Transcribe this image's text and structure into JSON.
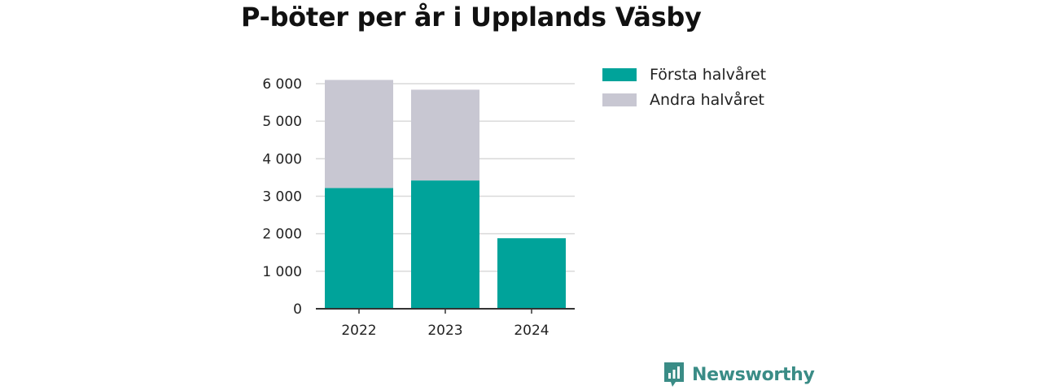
{
  "chart_data": {
    "type": "bar",
    "stacked": true,
    "title": "P-böter per år i Upplands Väsby",
    "categories": [
      "2022",
      "2023",
      "2024"
    ],
    "series": [
      {
        "name": "Första halvåret",
        "color": "#00a39a",
        "values": [
          3220,
          3420,
          1880
        ]
      },
      {
        "name": "Andra halvåret",
        "color": "#c8c7d2",
        "values": [
          2880,
          2420,
          0
        ]
      }
    ],
    "yticks": [
      "0",
      "1 000",
      "2 000",
      "3 000",
      "4 000",
      "5 000",
      "6 000"
    ],
    "ylim": [
      0,
      6000
    ],
    "grid": true,
    "legend_position": "right"
  },
  "brand": {
    "name": "Newsworthy",
    "icon": "newsworthy-logo-icon",
    "color": "#3a8c86"
  }
}
